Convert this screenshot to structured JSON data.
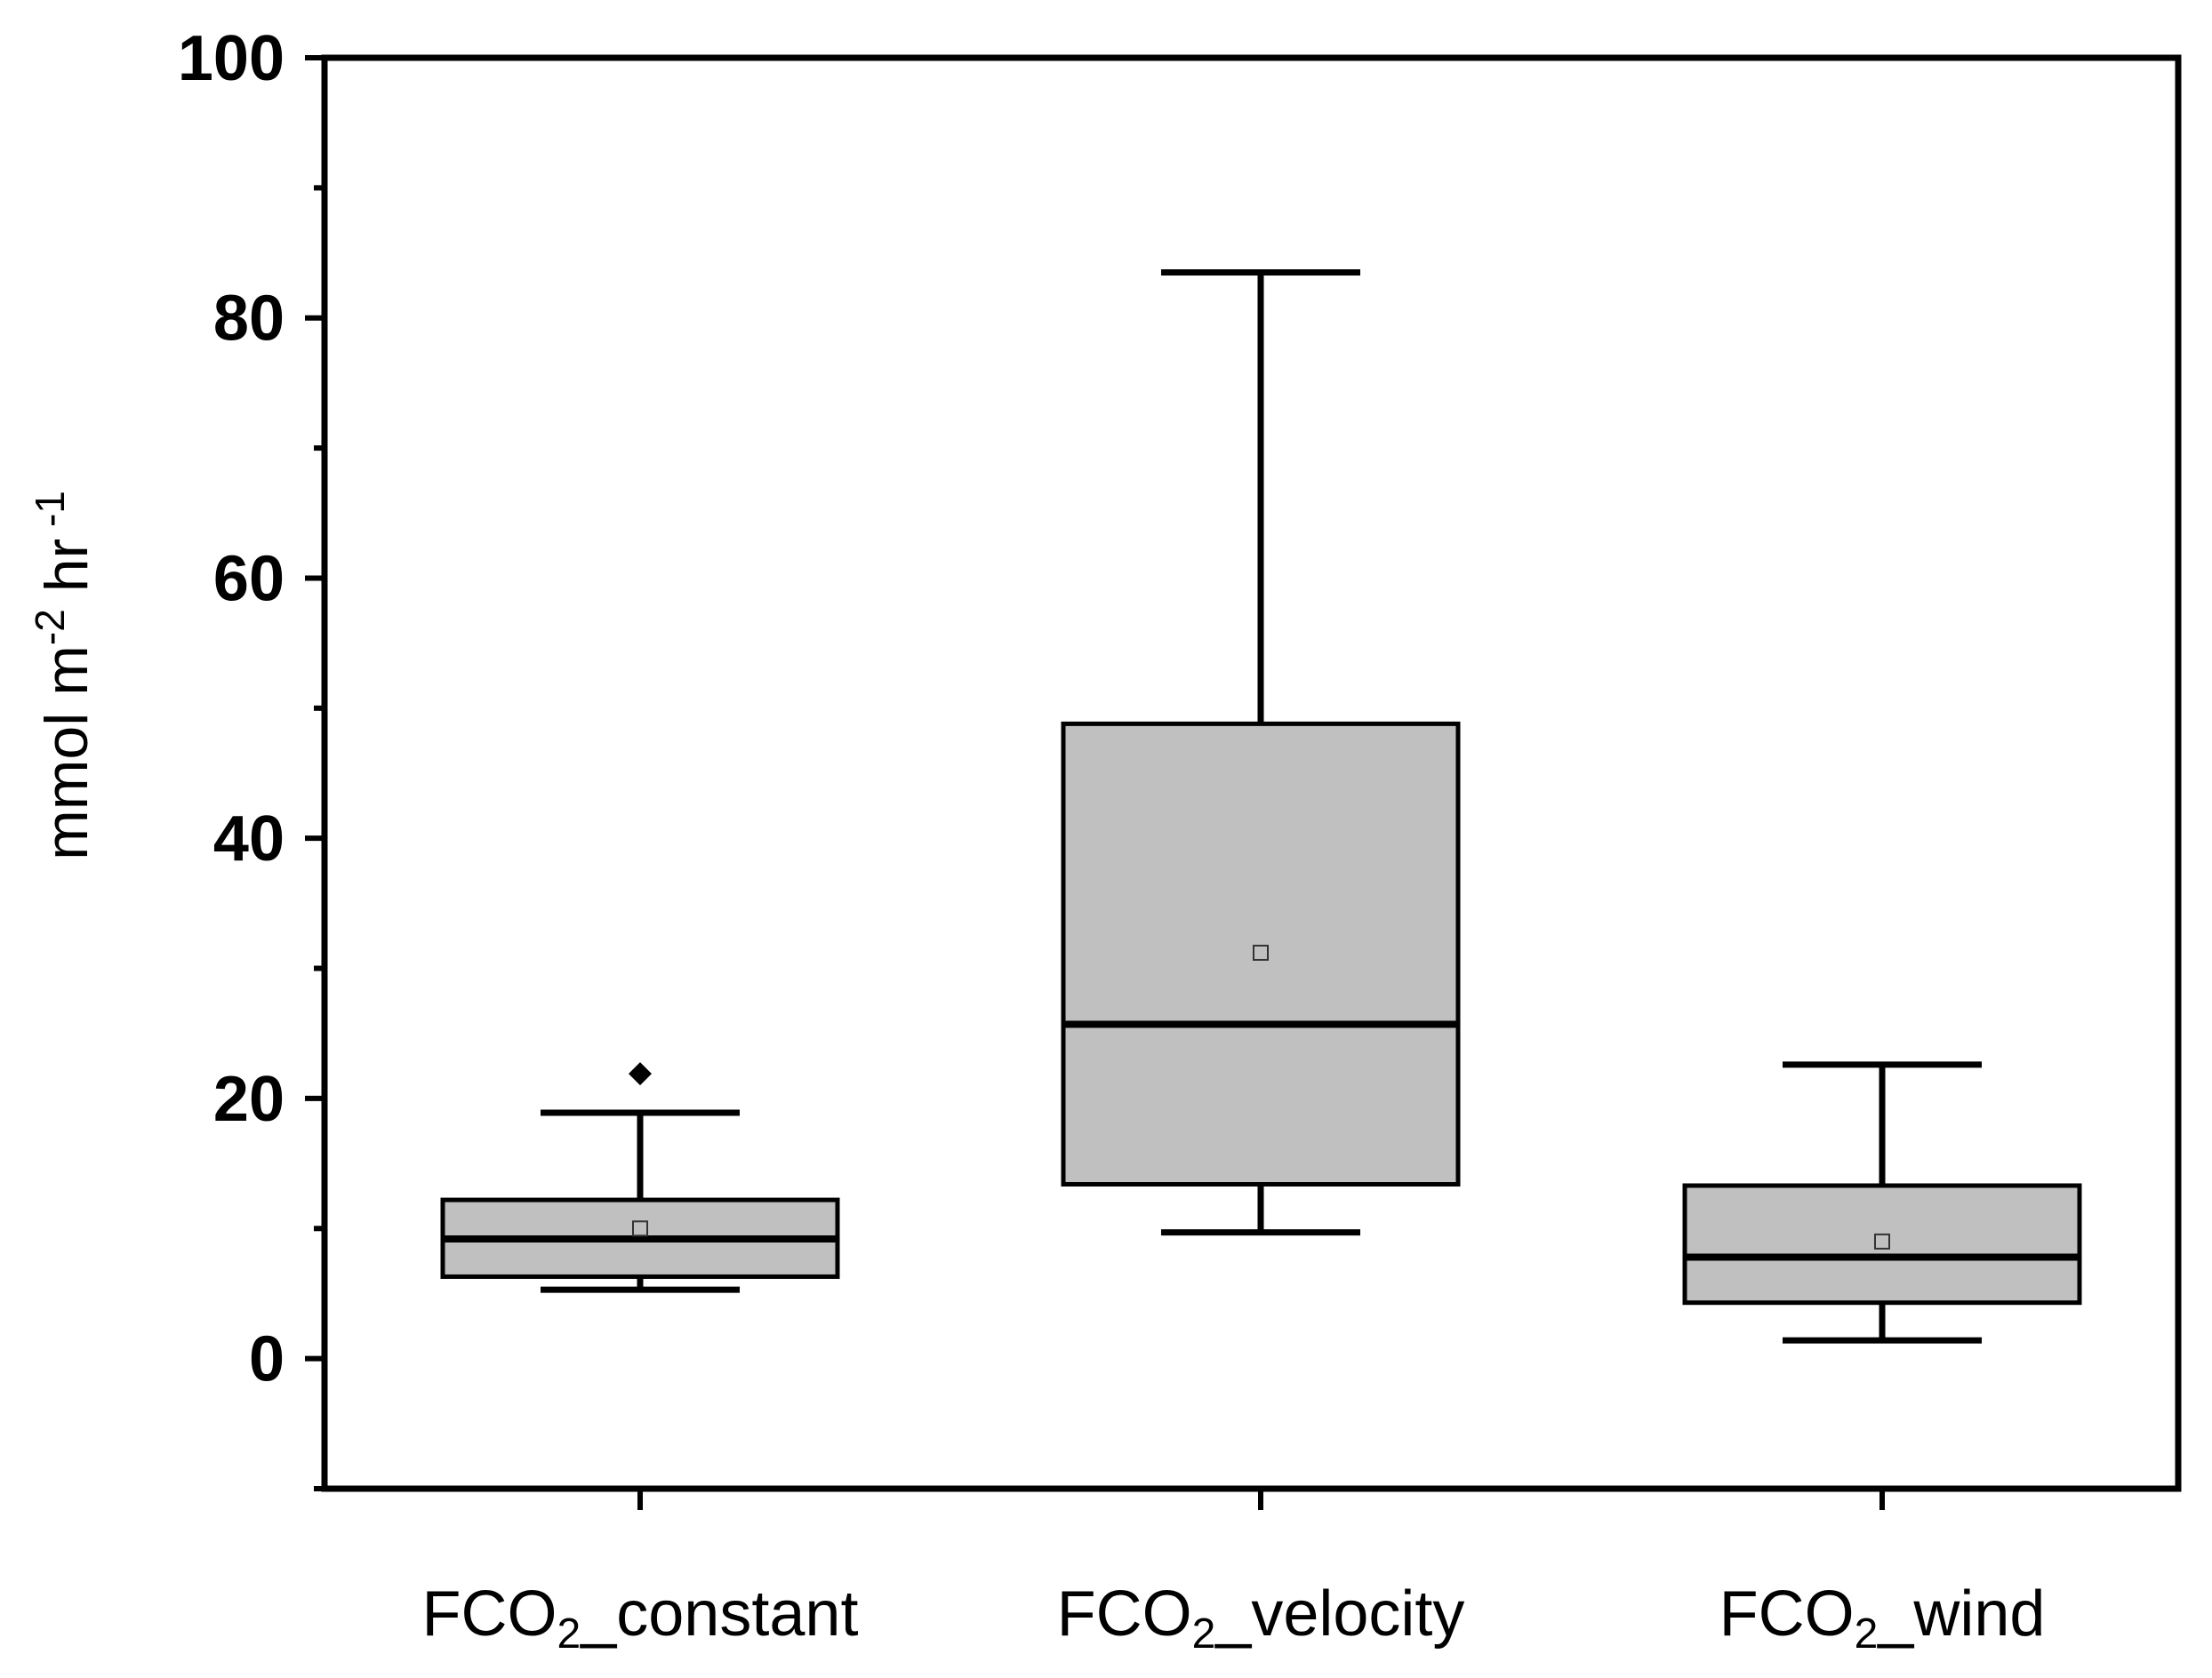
{
  "chart_data": {
    "type": "box",
    "title": "",
    "xlabel": "",
    "ylabel": {
      "base": "mmol m",
      "sup1": "-2",
      "mid": " hr",
      "sup2": " -1"
    },
    "ylim": [
      -10,
      100
    ],
    "yticks": [
      0,
      20,
      40,
      60,
      80,
      100
    ],
    "ytick_labels": [
      "0",
      "20",
      "40",
      "60",
      "80",
      "100"
    ],
    "minor_yticks": [
      -10,
      10,
      30,
      50,
      70,
      90
    ],
    "categories": [
      {
        "prefix": "FCO",
        "sub": "2",
        "suffix": "_constant"
      },
      {
        "prefix": "FCO",
        "sub": "2",
        "suffix": "_velocity"
      },
      {
        "prefix": "FCO",
        "sub": "2",
        "suffix": "_wind"
      }
    ],
    "boxes": [
      {
        "whisker_low": 5.3,
        "q1": 6.3,
        "median": 9.2,
        "q3": 12.2,
        "whisker_high": 18.9,
        "mean": 10.0,
        "outliers": [
          21.9
        ]
      },
      {
        "whisker_low": 9.7,
        "q1": 13.4,
        "median": 25.7,
        "q3": 48.8,
        "whisker_high": 83.5,
        "mean": 31.2,
        "outliers": []
      },
      {
        "whisker_low": 1.4,
        "q1": 4.3,
        "median": 7.8,
        "q3": 13.3,
        "whisker_high": 22.6,
        "mean": 9.0,
        "outliers": []
      }
    ],
    "colors": {
      "box_fill": "#c0c0c0",
      "stroke": "#000000",
      "background": "#ffffff"
    }
  }
}
